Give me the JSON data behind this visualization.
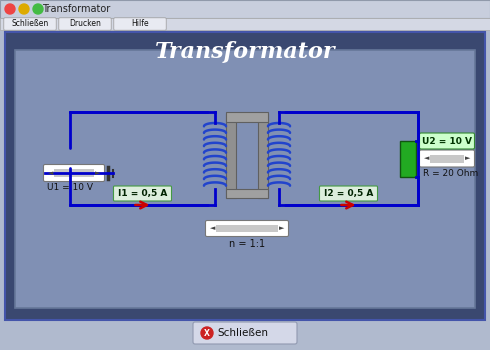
{
  "title": "Transformator",
  "window_title": "Transformator",
  "menu_buttons": [
    "Schließen",
    "Drucken",
    "Hilfe"
  ],
  "close_button_text": "Schließen",
  "bg_outer": "#b0bace",
  "bg_titlebar": "#c8cedd",
  "bg_menubar": "#d4d8e4",
  "bg_content": "#3a4870",
  "bg_inner": "#8090b4",
  "title_color": "#ffffff",
  "title_fontsize": 16,
  "circuit_color": "#0000cc",
  "label_u1": "U1 = 10 V",
  "label_u2": "U2 = 10 V",
  "label_i1": "I1 = 0,5 A",
  "label_i2": "I2 = 0,5 A",
  "label_r": "R = 20 Ohm",
  "label_n": "n = 1:1",
  "arrow_color": "#cc0000",
  "green_rect_color": "#22aa22",
  "coil_color": "#2244cc",
  "core_color": "#909090",
  "btn_face": "#dde0ea",
  "btn_edge": "#888899"
}
